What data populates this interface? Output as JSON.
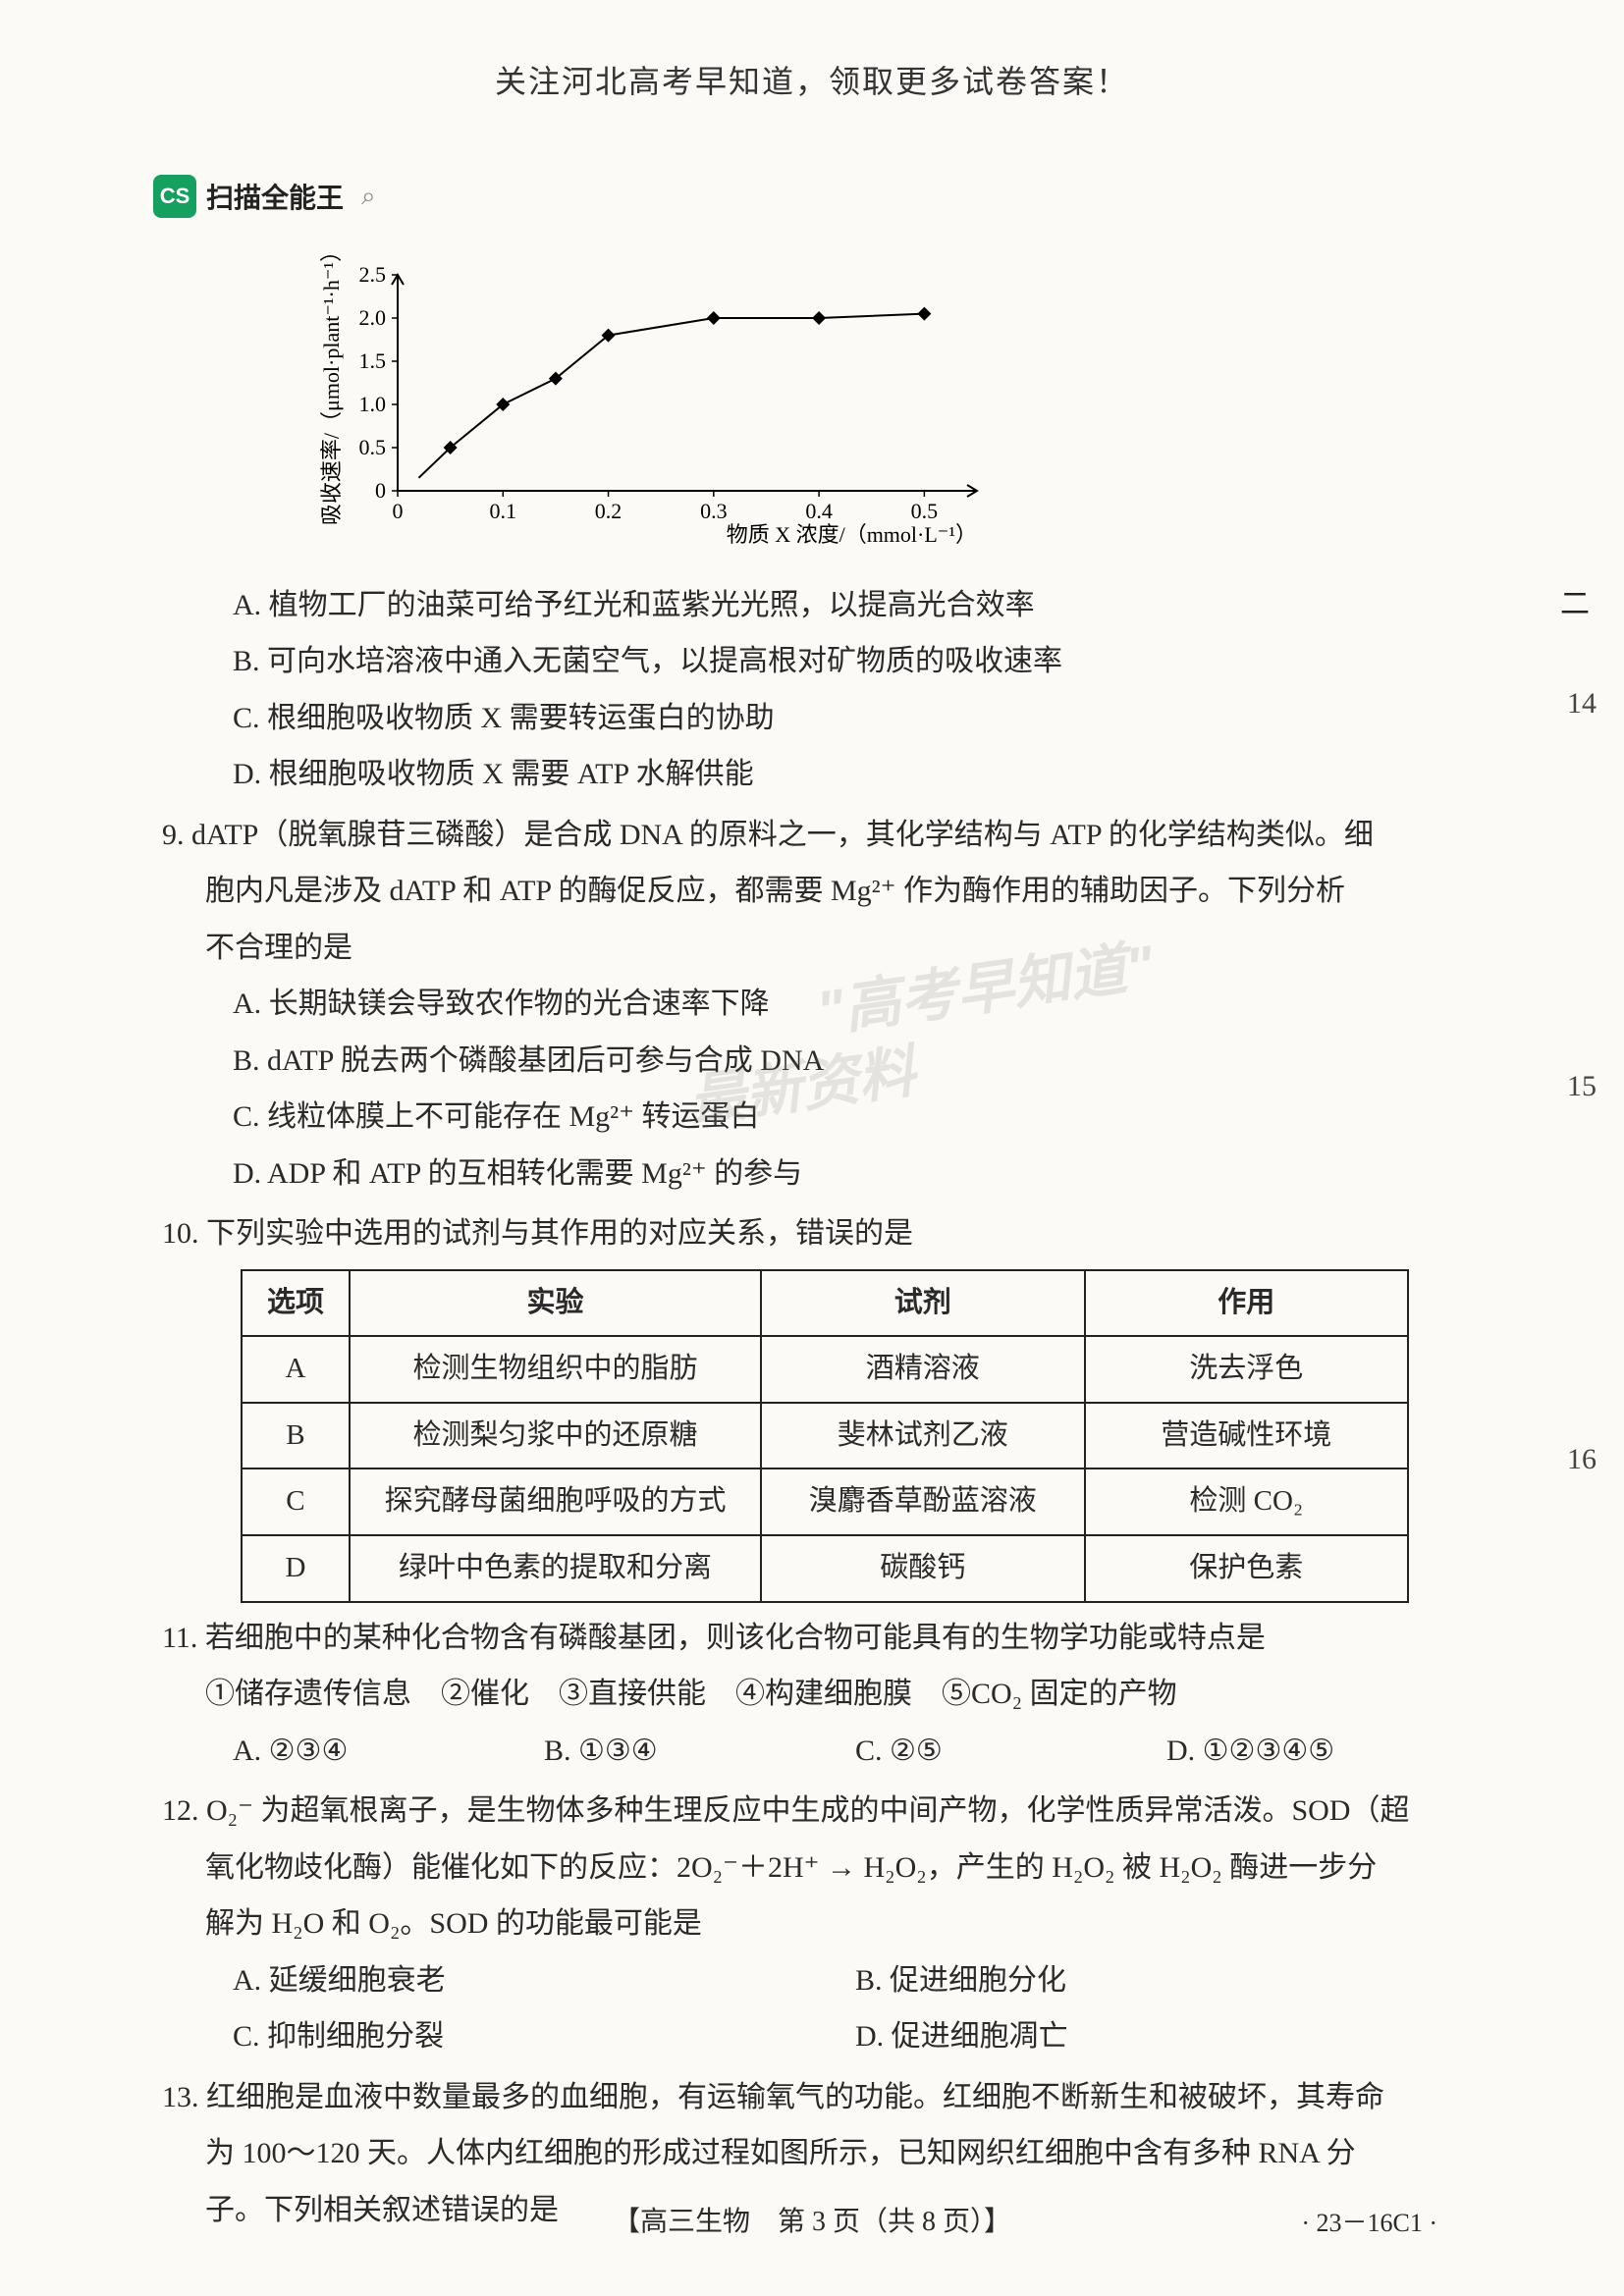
{
  "header": {
    "banner": "关注河北高考早知道，领取更多试卷答案！"
  },
  "badge": {
    "icon_text": "CS",
    "label": "扫描全能王",
    "search_glyph": "⌕"
  },
  "chart": {
    "type": "scatter_line",
    "x_label": "物质 X 浓度/（mmol·L⁻¹）",
    "y_label": "吸收速率/（μmol·plant⁻¹·h⁻¹）",
    "x_ticks": [
      0,
      0.1,
      0.2,
      0.3,
      0.4,
      0.5
    ],
    "y_ticks": [
      0,
      0.5,
      1.0,
      1.5,
      2.0,
      2.5
    ],
    "xlim": [
      0,
      0.55
    ],
    "ylim": [
      0,
      2.5
    ],
    "points": [
      {
        "x": 0.05,
        "y": 0.5
      },
      {
        "x": 0.1,
        "y": 1.0
      },
      {
        "x": 0.15,
        "y": 1.3
      },
      {
        "x": 0.2,
        "y": 1.8
      },
      {
        "x": 0.3,
        "y": 2.0
      },
      {
        "x": 0.4,
        "y": 2.0
      },
      {
        "x": 0.5,
        "y": 2.05
      }
    ],
    "marker": "diamond",
    "marker_color": "#000000",
    "line_color": "#000000",
    "line_width": 2,
    "axis_color": "#000000",
    "label_fontsize": 22,
    "tick_fontsize": 22,
    "background_color": "#fcfaf6"
  },
  "q8_options": {
    "A": "A. 植物工厂的油菜可给予红光和蓝紫光光照，以提高光合效率",
    "B": "B. 可向水培溶液中通入无菌空气，以提高根对矿物质的吸收速率",
    "C": "C. 根细胞吸收物质 X 需要转运蛋白的协助",
    "D": "D. 根细胞吸收物质 X 需要 ATP 水解供能"
  },
  "q9": {
    "stem1": "9. dATP（脱氧腺苷三磷酸）是合成 DNA 的原料之一，其化学结构与 ATP 的化学结构类似。细",
    "stem2": "胞内凡是涉及 dATP 和 ATP 的酶促反应，都需要 Mg²⁺ 作为酶作用的辅助因子。下列分析",
    "stem3": "不合理的是",
    "A": "A. 长期缺镁会导致农作物的光合速率下降",
    "B": "B. dATP 脱去两个磷酸基团后可参与合成 DNA",
    "C": "C. 线粒体膜上不可能存在 Mg²⁺ 转运蛋白",
    "D": "D. ADP 和 ATP 的互相转化需要 Mg²⁺ 的参与"
  },
  "q10": {
    "stem": "10. 下列实验中选用的试剂与其作用的对应关系，错误的是",
    "table": {
      "columns": [
        "选项",
        "实验",
        "试剂",
        "作用"
      ],
      "rows": [
        [
          "A",
          "检测生物组织中的脂肪",
          "酒精溶液",
          "洗去浮色"
        ],
        [
          "B",
          "检测梨匀浆中的还原糖",
          "斐林试剂乙液",
          "营造碱性环境"
        ],
        [
          "C",
          "探究酵母菌细胞呼吸的方式",
          "溴麝香草酚蓝溶液",
          "检测 CO₂"
        ],
        [
          "D",
          "绿叶中色素的提取和分离",
          "碳酸钙",
          "保护色素"
        ]
      ],
      "col_widths": [
        "110px",
        "420px",
        "330px",
        "330px"
      ],
      "border_color": "#222222",
      "cell_fontsize": 29
    }
  },
  "q11": {
    "stem": "11. 若细胞中的某种化合物含有磷酸基团，则该化合物可能具有的生物学功能或特点是",
    "items": "①储存遗传信息　②催化　③直接供能　④构建细胞膜　⑤CO₂ 固定的产物",
    "choices": {
      "A": "A. ②③④",
      "B": "B. ①③④",
      "C": "C. ②⑤",
      "D": "D. ①②③④⑤"
    }
  },
  "q12": {
    "stem1": "12. O₂⁻ 为超氧根离子，是生物体多种生理反应中生成的中间产物，化学性质异常活泼。SOD（超",
    "stem2": "氧化物歧化酶）能催化如下的反应：2O₂⁻＋2H⁺ → H₂O₂，产生的 H₂O₂ 被 H₂O₂ 酶进一步分",
    "stem3": "解为 H₂O 和 O₂。SOD 的功能最可能是",
    "choices": {
      "A": "A. 延缓细胞衰老",
      "B": "B. 促进细胞分化",
      "C": "C. 抑制细胞分裂",
      "D": "D. 促进细胞凋亡"
    }
  },
  "q13": {
    "stem1": "13. 红细胞是血液中数量最多的血细胞，有运输氧气的功能。红细胞不断新生和被破坏，其寿命",
    "stem2": "为 100～120 天。人体内红细胞的形成过程如图所示，已知网织红细胞中含有多种 RNA 分",
    "stem3": "子。下列相关叙述错误的是"
  },
  "footer": {
    "center": "【高三生物　第 3 页（共 8 页）】",
    "code": "· 23－16C1 ·"
  },
  "edge": {
    "char_1": "二",
    "num_14": "14",
    "num_15": "15",
    "num_16": "16"
  },
  "watermarks": {
    "w1": "\"高考早知道\"",
    "w2": "最新资料"
  }
}
